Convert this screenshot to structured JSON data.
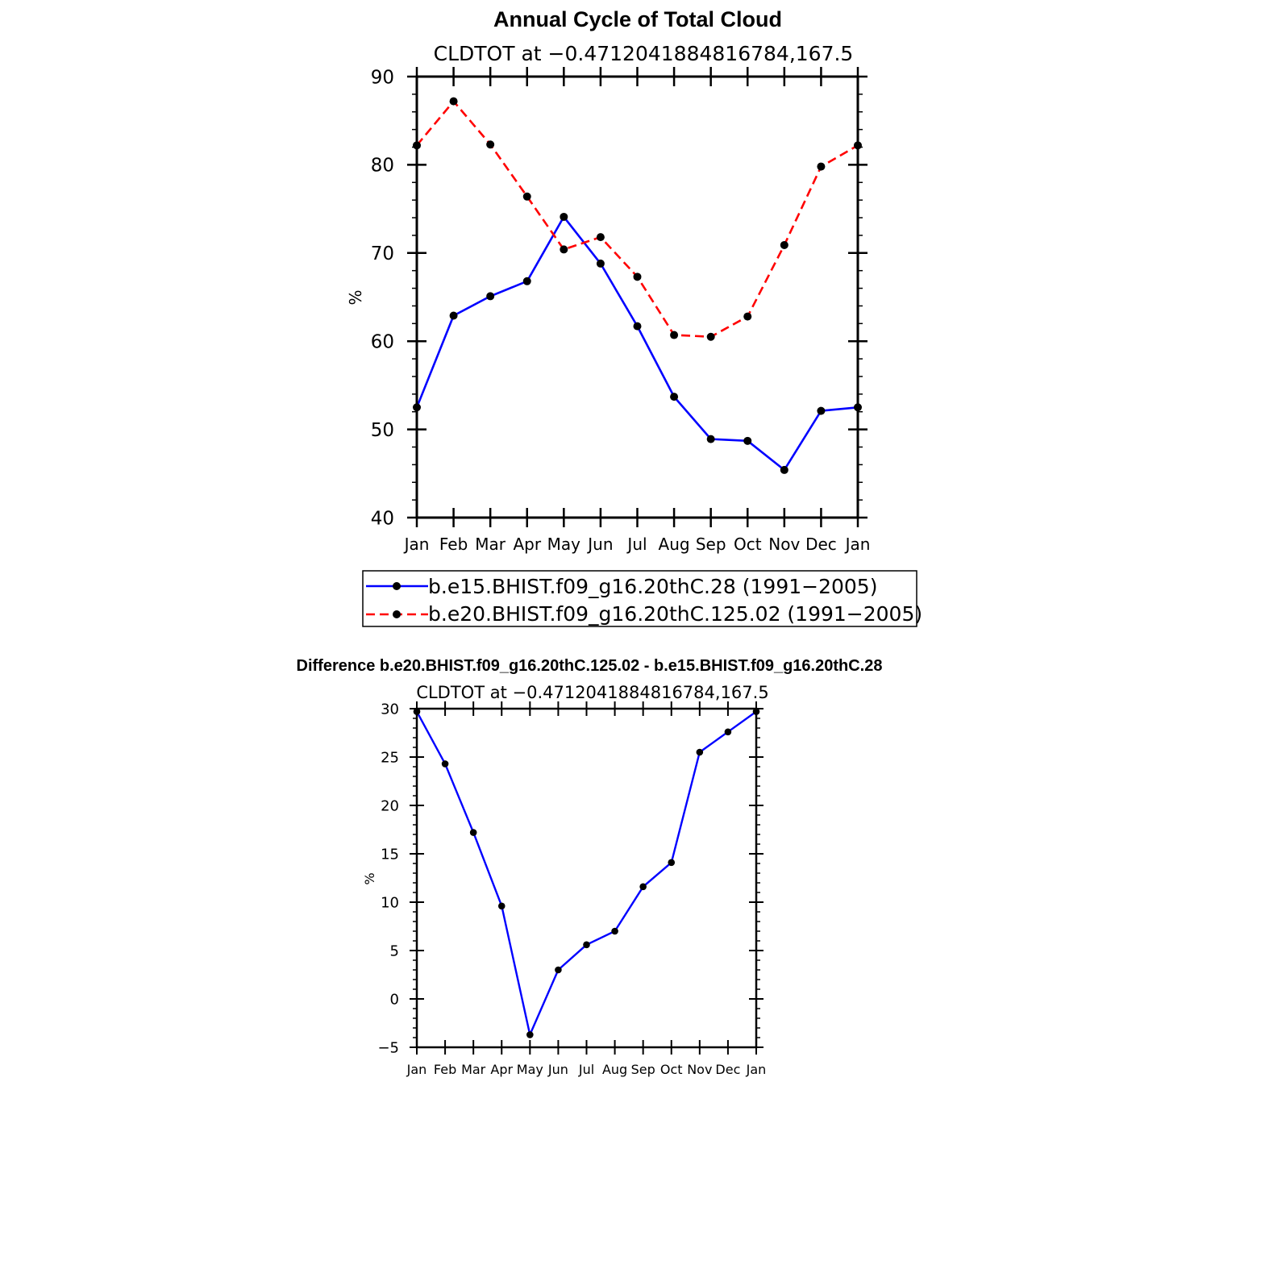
{
  "chart_data": [
    {
      "type": "line",
      "title": "Annual Cycle of Total Cloud",
      "subtitle": "CLDTOT at −0.4712041884816784,167.5",
      "xlabel": "",
      "ylabel": "%",
      "categories": [
        "Jan",
        "Feb",
        "Mar",
        "Apr",
        "May",
        "Jun",
        "Jul",
        "Aug",
        "Sep",
        "Oct",
        "Nov",
        "Dec",
        "Jan"
      ],
      "ylim": [
        40,
        90
      ],
      "yticks": [
        40,
        50,
        60,
        70,
        80,
        90
      ],
      "yticklabels": [
        "40",
        "50",
        "60",
        "70",
        "80",
        "90"
      ],
      "grid": false,
      "legend_placement": "bottom",
      "series": [
        {
          "name": "b.e15.BHIST.f09_g16.20thC.28 (1991−2005)",
          "color": "#0000ff",
          "dash": "solid",
          "values": [
            52.5,
            62.9,
            65.1,
            66.8,
            74.1,
            68.8,
            61.7,
            53.7,
            48.9,
            48.7,
            45.4,
            52.1,
            52.5
          ]
        },
        {
          "name": "b.e20.BHIST.f09_g16.20thC.125.02 (1991−2005)",
          "color": "#ff0000",
          "dash": "dashed",
          "values": [
            82.2,
            87.2,
            82.3,
            76.4,
            70.4,
            71.8,
            67.3,
            60.7,
            60.5,
            62.8,
            70.9,
            79.8,
            82.2
          ]
        }
      ]
    },
    {
      "type": "line",
      "title": "Difference b.e20.BHIST.f09_g16.20thC.125.02 - b.e15.BHIST.f09_g16.20thC.28",
      "subtitle": "CLDTOT at −0.4712041884816784,167.5",
      "xlabel": "",
      "ylabel": "%",
      "categories": [
        "Jan",
        "Feb",
        "Mar",
        "Apr",
        "May",
        "Jun",
        "Jul",
        "Aug",
        "Sep",
        "Oct",
        "Nov",
        "Dec",
        "Jan"
      ],
      "ylim": [
        -5,
        30
      ],
      "yticks": [
        -5,
        0,
        5,
        10,
        15,
        20,
        25,
        30
      ],
      "yticklabels": [
        "−5",
        "0",
        "5",
        "10",
        "15",
        "20",
        "25",
        "30"
      ],
      "grid": false,
      "series": [
        {
          "color": "#0000ff",
          "dash": "solid",
          "values": [
            29.7,
            24.3,
            17.2,
            9.6,
            -3.7,
            3.0,
            5.6,
            7.0,
            11.6,
            14.1,
            25.5,
            27.6,
            29.7
          ]
        }
      ]
    }
  ]
}
